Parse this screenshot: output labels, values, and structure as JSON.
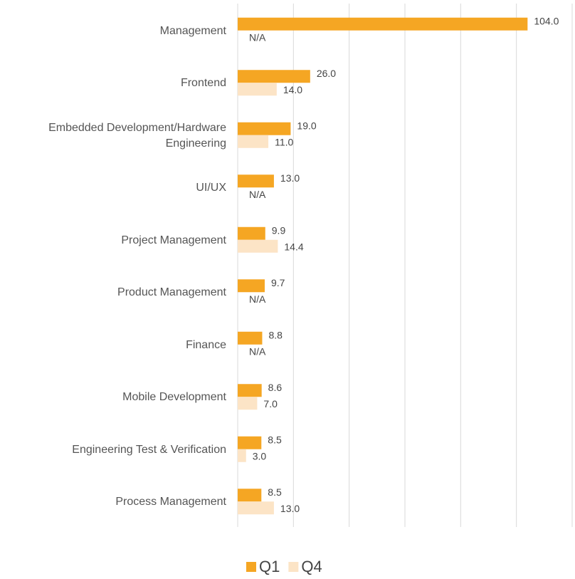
{
  "chart_data": {
    "type": "barh",
    "categories": [
      "Management",
      "Frontend",
      "Embedded Development/Hardware Engineering",
      "UI/UX",
      "Project Management",
      "Product Management",
      "Finance",
      "Mobile Development",
      "Engineering Test & Verification",
      "Process Management"
    ],
    "series": [
      {
        "name": "Q1",
        "color": "#f5a623",
        "values": [
          104,
          26,
          19,
          13,
          9.9,
          9.7,
          8.8,
          8.6,
          8.5,
          8.5
        ],
        "value_labels": [
          "104.0",
          "26.0",
          "19.0",
          "13.0",
          "9.9",
          "9.7",
          "8.8",
          "8.6",
          "8.5",
          "8.5"
        ]
      },
      {
        "name": "Q4",
        "color": "#fce4c6",
        "values": [
          null,
          14,
          11,
          null,
          14.4,
          null,
          null,
          7,
          3,
          13
        ],
        "value_labels": [
          "N/A",
          "14.0",
          "11.0",
          "N/A",
          "14.4",
          "N/A",
          "N/A",
          "7.0",
          "3.0",
          "13.0"
        ]
      }
    ],
    "xlim": [
      0,
      120
    ],
    "xticks": [
      0,
      20,
      40,
      60,
      80,
      100,
      120
    ],
    "grid": true,
    "legend": "bottom"
  }
}
